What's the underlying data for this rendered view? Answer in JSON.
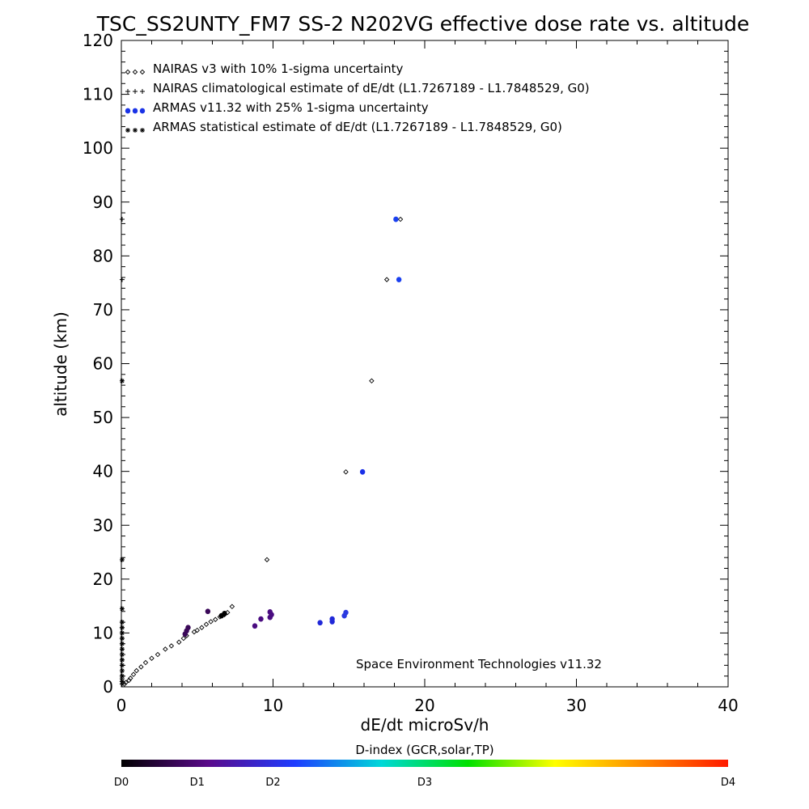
{
  "chart_data": {
    "type": "scatter",
    "title": "TSC_SS2UNTY_FM7 SS-2 N202VG effective dose rate vs. altitude",
    "xlabel": "dE/dt microSv/h",
    "ylabel": "altitude (km)",
    "xlim": [
      0,
      40
    ],
    "ylim": [
      0,
      120
    ],
    "xticks": [
      "0",
      "10",
      "20",
      "30",
      "40"
    ],
    "yticks": [
      "0",
      "10",
      "20",
      "30",
      "40",
      "50",
      "60",
      "70",
      "80",
      "90",
      "100",
      "110",
      "120"
    ],
    "grid": false,
    "legend_position": "top-left",
    "legend": [
      {
        "label": "NAIRAS v3 with 10% 1-sigma uncertainty",
        "marker": "diamond"
      },
      {
        "label": "NAIRAS climatological estimate of dE/dt (L1.7267189 - L1.7848529, G0)",
        "marker": "plus"
      },
      {
        "label": "ARMAS v11.32 with 25% 1-sigma uncertainty",
        "marker": "filled-circle",
        "color": "#1a33e6"
      },
      {
        "label": "ARMAS statistical estimate of dE/dt (L1.7267189 - L1.7848529, G0)",
        "marker": "asterisk"
      }
    ],
    "annotation": "Space Environment Technologies v11.32",
    "series": [
      {
        "marker": "diamond",
        "x": [
          0.2,
          0.3,
          0.5,
          0.6,
          0.8,
          1.0,
          1.3,
          1.6,
          2.0,
          2.4,
          2.9,
          3.3,
          3.8,
          4.1,
          4.3,
          4.8,
          5.0,
          5.3,
          5.6,
          5.9,
          6.2,
          6.5,
          6.8,
          7.0,
          7.3,
          9.6,
          14.8,
          16.5,
          17.5,
          18.4
        ],
        "y": [
          0.5,
          0.8,
          1.2,
          1.6,
          2.3,
          3.0,
          3.7,
          4.5,
          5.3,
          6.0,
          7.0,
          7.6,
          8.3,
          9.0,
          9.5,
          10.2,
          10.5,
          11.0,
          11.6,
          12.1,
          12.5,
          13.0,
          13.4,
          13.8,
          14.9,
          23.6,
          39.9,
          56.8,
          75.6,
          86.8
        ]
      },
      {
        "marker": "plus",
        "x": [
          0.05,
          0.05,
          0.05,
          0.05,
          0.05,
          0.05,
          0.05,
          0.05,
          0.05,
          0.05,
          0.05,
          0.05,
          0.05,
          0.05,
          0.05,
          0.05
        ],
        "y": [
          0.5,
          1.0,
          1.5,
          2.0,
          3.0,
          4.0,
          5.0,
          6.0,
          7.0,
          8.0,
          9.0,
          10.0,
          11.0,
          12.0,
          75.6,
          86.8
        ]
      },
      {
        "marker": "filled-circle",
        "x": [
          4.2,
          4.3,
          4.4,
          5.7,
          6.6,
          6.8,
          8.8,
          9.2,
          9.8,
          9.9,
          9.8,
          13.1,
          13.9,
          13.9,
          14.7,
          14.8,
          15.9,
          18.1,
          18.3
        ],
        "y": [
          9.8,
          10.4,
          11.0,
          14.0,
          13.2,
          13.6,
          11.3,
          12.6,
          12.9,
          13.4,
          13.9,
          11.9,
          12.1,
          12.6,
          13.2,
          13.8,
          39.9,
          86.8,
          75.6
        ],
        "colors": [
          "#3a0858",
          "#3a0858",
          "#3a0858",
          "#3a0858",
          "#000000",
          "#000000",
          "#4a0c80",
          "#4a0c80",
          "#4a0c80",
          "#4a0c80",
          "#4a0c80",
          "#2028d8",
          "#2028d8",
          "#2028d8",
          "#2a3ae0",
          "#2a3ae0",
          "#1a30e8",
          "#1a40f0",
          "#1a40f0"
        ]
      },
      {
        "marker": "asterisk",
        "x": [
          0.05,
          0.05,
          0.05,
          0.05,
          0.05,
          0.05,
          0.05,
          0.05,
          0.05,
          0.05,
          0.05,
          0.05,
          0.05,
          0.05,
          0.05
        ],
        "y": [
          1.0,
          2.0,
          3.0,
          4.0,
          5.0,
          6.0,
          7.0,
          8.0,
          9.0,
          10.0,
          11.0,
          12.0,
          14.5,
          23.6,
          56.8
        ]
      }
    ],
    "colorbar": {
      "title": "D-index (GCR,solar,TP)",
      "labels": [
        "D0",
        "D1",
        "D2",
        "D3",
        "D4"
      ],
      "label_positions": [
        0,
        0.125,
        0.25,
        0.5,
        1.0
      ],
      "colors": [
        "#000000",
        "#5a0a8a",
        "#1e3cff",
        "#00d8d8",
        "#00e000",
        "#ffff00",
        "#ff8c00",
        "#ff1a00"
      ]
    }
  }
}
